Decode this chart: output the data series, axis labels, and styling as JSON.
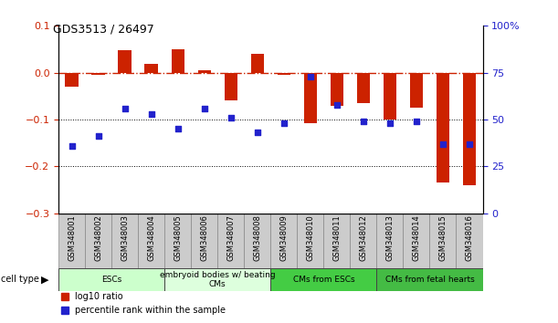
{
  "title": "GDS3513 / 26497",
  "samples": [
    "GSM348001",
    "GSM348002",
    "GSM348003",
    "GSM348004",
    "GSM348005",
    "GSM348006",
    "GSM348007",
    "GSM348008",
    "GSM348009",
    "GSM348010",
    "GSM348011",
    "GSM348012",
    "GSM348013",
    "GSM348014",
    "GSM348015",
    "GSM348016"
  ],
  "log10_ratio": [
    -0.03,
    -0.005,
    0.048,
    0.018,
    0.05,
    0.005,
    -0.06,
    0.04,
    -0.005,
    -0.108,
    -0.07,
    -0.065,
    -0.1,
    -0.075,
    -0.235,
    -0.24
  ],
  "percentile_rank_pct": [
    36,
    41,
    56,
    53,
    45,
    56,
    51,
    43,
    48,
    73,
    58,
    49,
    48,
    49,
    37,
    37
  ],
  "ylim_left": [
    -0.3,
    0.1
  ],
  "ylim_right": [
    0,
    100
  ],
  "yticks_left": [
    -0.3,
    -0.2,
    -0.1,
    0.0,
    0.1
  ],
  "yticks_right": [
    0,
    25,
    50,
    75,
    100
  ],
  "ytick_labels_right": [
    "0",
    "25",
    "50",
    "75",
    "100%"
  ],
  "bar_color": "#CC2200",
  "dot_color": "#2222CC",
  "dash_color": "#CC2200",
  "cell_groups": [
    {
      "label": "ESCs",
      "start": 0,
      "end": 3,
      "color": "#CCFFCC"
    },
    {
      "label": "embryoid bodies w/ beating\nCMs",
      "start": 4,
      "end": 7,
      "color": "#DDFFDD"
    },
    {
      "label": "CMs from ESCs",
      "start": 8,
      "end": 11,
      "color": "#44CC44"
    },
    {
      "label": "CMs from fetal hearts",
      "start": 12,
      "end": 15,
      "color": "#44BB44"
    }
  ],
  "legend_bar_label": "log10 ratio",
  "legend_dot_label": "percentile rank within the sample",
  "bar_width": 0.5
}
